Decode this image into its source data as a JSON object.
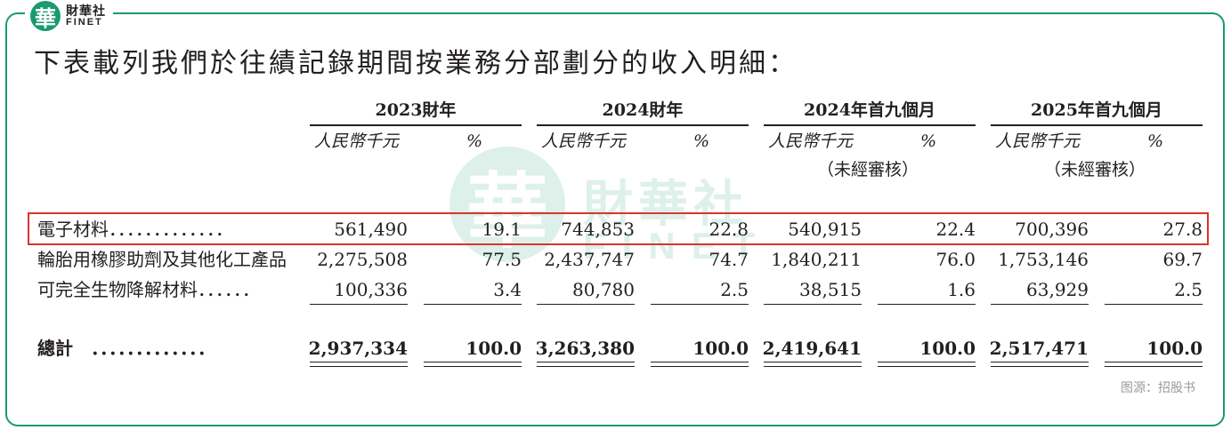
{
  "brand": {
    "logo_char": "華",
    "name_cn": "財華社",
    "name_en": "FINET"
  },
  "heading": "下表載列我們於往績記錄期間按業務分部劃分的收入明細：",
  "columns": {
    "groups": [
      "2023財年",
      "2024財年",
      "2024年首九個月",
      "2025年首九個月"
    ],
    "amount_label": "人民幣千元",
    "percent_label": "%",
    "unaudited_label": "（未經審核）"
  },
  "rows": [
    {
      "label": "電子材料．．．．．．．．．．．．．",
      "values": [
        "561,490",
        "19.1",
        "744,853",
        "22.8",
        "540,915",
        "22.4",
        "700,396",
        "27.8"
      ]
    },
    {
      "label": "輪胎用橡膠助劑及其他化工產品",
      "values": [
        "2,275,508",
        "77.5",
        "2,437,747",
        "74.7",
        "1,840,211",
        "76.0",
        "1,753,146",
        "69.7"
      ]
    },
    {
      "label": "可完全生物降解材料．．．．．．",
      "values": [
        "100,336",
        "3.4",
        "80,780",
        "2.5",
        "38,515",
        "1.6",
        "63,929",
        "2.5"
      ]
    }
  ],
  "total": {
    "label": "總計　．．．．．．．．．．．．．",
    "values": [
      "2,937,334",
      "100.0",
      "3,263,380",
      "100.0",
      "2,419,641",
      "100.0",
      "2,517,471",
      "100.0"
    ]
  },
  "source": "图源：招股书",
  "colors": {
    "brand_green": "#1a9a6e",
    "highlight_red": "#d9342b",
    "text": "#231f20"
  }
}
